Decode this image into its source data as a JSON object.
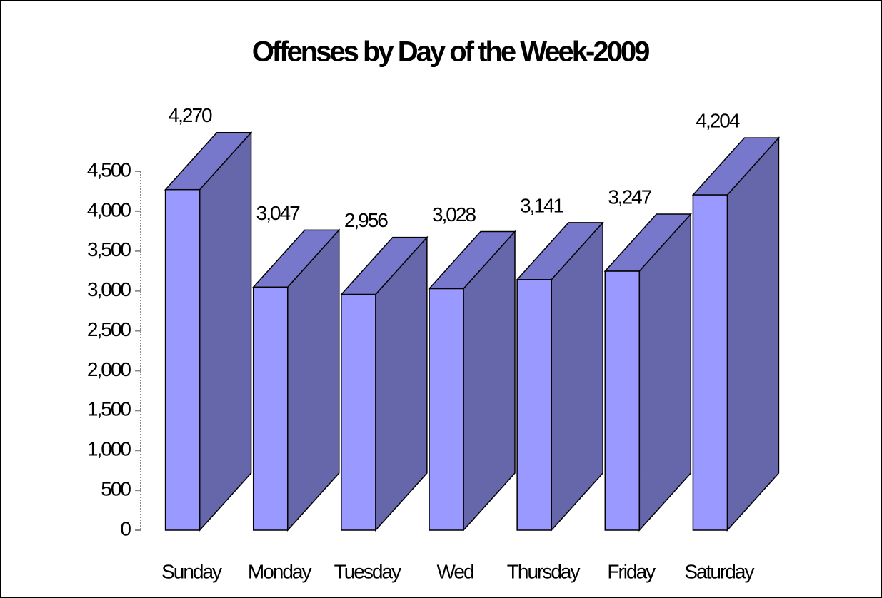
{
  "chart_data": {
    "type": "bar3d",
    "title": "Offenses by Day of the Week-2009",
    "categories": [
      "Sunday",
      "Monday",
      "Tuesday",
      "Wed",
      "Thursday",
      "Friday",
      "Saturday"
    ],
    "values": [
      4270,
      3047,
      2956,
      3028,
      3141,
      3247,
      4204
    ],
    "value_labels": [
      "4,270",
      "3,047",
      "2,956",
      "3,028",
      "3,141",
      "3,247",
      "4,204"
    ],
    "color": "#9999ff",
    "ylim": [
      0,
      4500
    ],
    "yticks": [
      0,
      500,
      {
        "value": 1000,
        "label": "1,000"
      },
      {
        "value": 1500,
        "label": "1,500"
      },
      {
        "value": 2000,
        "label": "2,000"
      },
      {
        "value": 2500,
        "label": "2,500"
      },
      {
        "value": 3000,
        "label": "3,000"
      },
      {
        "value": 3500,
        "label": "3,500"
      },
      {
        "value": 4000,
        "label": "4,000"
      },
      {
        "value": 4500,
        "label": "4,500"
      }
    ]
  }
}
